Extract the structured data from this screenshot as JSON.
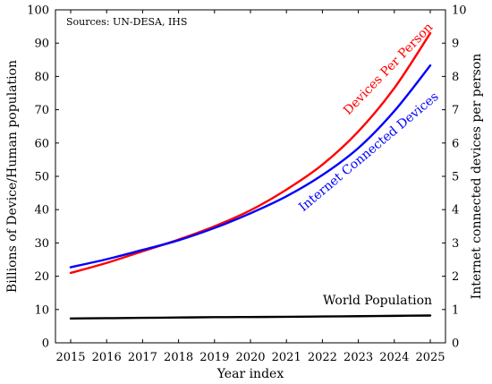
{
  "chart_data": {
    "type": "line",
    "note": "Sources: UN-DESA, IHS",
    "xlabel": "Year index",
    "ylabel_left": "Billions of Device/Human population",
    "ylabel_right": "Internet connected devices per person",
    "x": [
      2015,
      2016,
      2017,
      2018,
      2019,
      2020,
      2021,
      2022,
      2023,
      2024,
      2025
    ],
    "x_ticks": [
      "2015",
      "2016",
      "2017",
      "2018",
      "2019",
      "2020",
      "2021",
      "2022",
      "2023",
      "2024",
      "2025"
    ],
    "ylim_left": [
      0,
      100
    ],
    "ylim_right": [
      0,
      10
    ],
    "y_ticks_left": [
      "0",
      "10",
      "20",
      "30",
      "40",
      "50",
      "60",
      "70",
      "80",
      "90",
      "100"
    ],
    "y_ticks_right": [
      "0",
      "1",
      "2",
      "3",
      "4",
      "5",
      "6",
      "7",
      "8",
      "9",
      "10"
    ],
    "grid": false,
    "series": [
      {
        "name": "Devices Per Person",
        "axis": "right",
        "color": "#ff0000",
        "values": [
          2.1,
          2.4,
          2.75,
          3.1,
          3.5,
          3.98,
          4.6,
          5.35,
          6.35,
          7.65,
          9.3
        ]
      },
      {
        "name": "Internet Connected Devices",
        "axis": "left",
        "color": "#0000ff",
        "values": [
          22.7,
          25.1,
          27.9,
          30.8,
          34.5,
          38.9,
          44.0,
          50.4,
          58.5,
          69.6,
          83.3
        ]
      },
      {
        "name": "World Population",
        "axis": "left",
        "color": "#000000",
        "values": [
          7.3,
          7.4,
          7.5,
          7.6,
          7.7,
          7.75,
          7.8,
          7.9,
          8.0,
          8.1,
          8.2
        ]
      }
    ]
  }
}
